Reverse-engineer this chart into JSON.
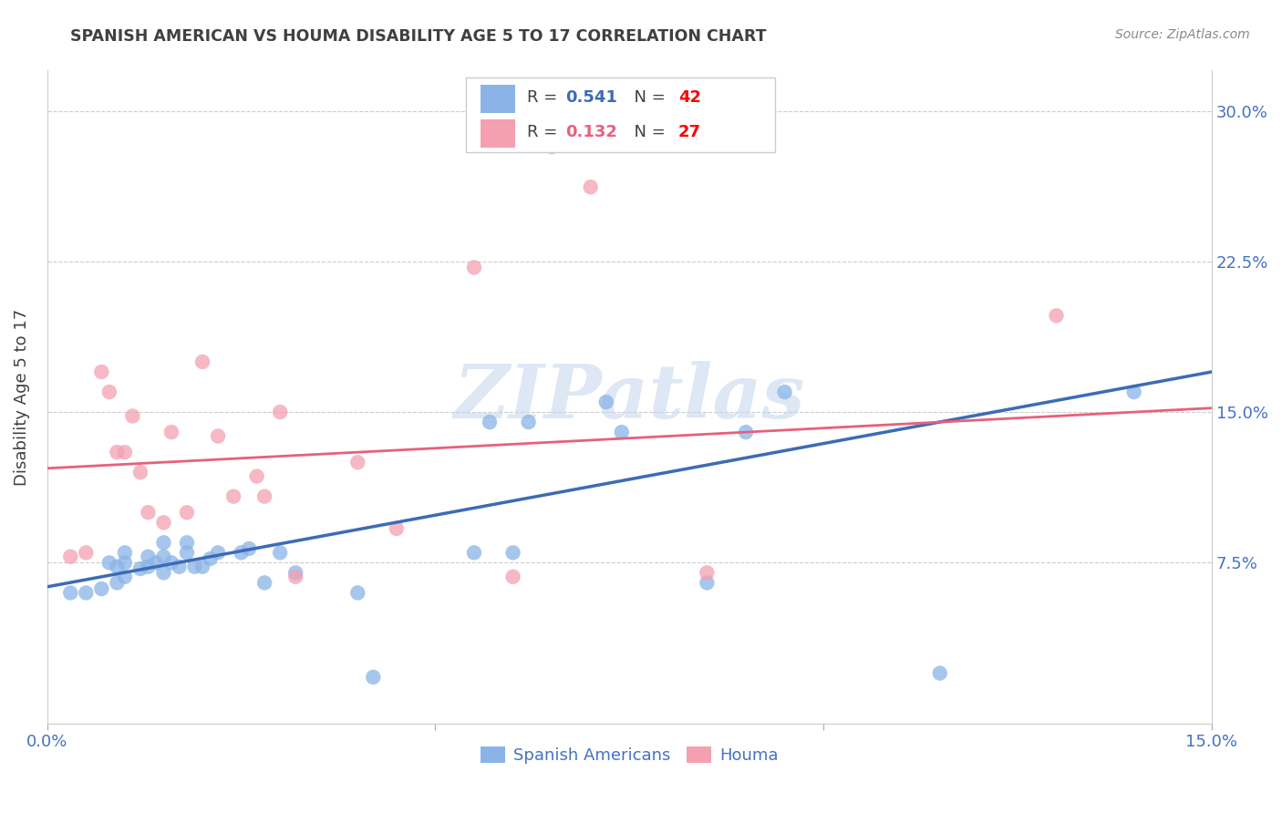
{
  "title": "SPANISH AMERICAN VS HOUMA DISABILITY AGE 5 TO 17 CORRELATION CHART",
  "source": "Source: ZipAtlas.com",
  "ylabel": "Disability Age 5 to 17",
  "xlim": [
    0.0,
    0.15
  ],
  "ylim": [
    -0.005,
    0.32
  ],
  "yticks": [
    0.075,
    0.15,
    0.225,
    0.3
  ],
  "xticks": [
    0.0,
    0.05,
    0.1,
    0.15
  ],
  "xtick_labels": [
    "0.0%",
    "",
    "",
    "15.0%"
  ],
  "ytick_labels": [
    "7.5%",
    "15.0%",
    "22.5%",
    "30.0%"
  ],
  "legend_r1": "R = ",
  "legend_rv1": "0.541",
  "legend_n1": "  N = ",
  "legend_nv1": "42",
  "legend_r2": "R = ",
  "legend_rv2": "0.132",
  "legend_n2": "  N = ",
  "legend_nv2": "27",
  "blue_color": "#8AB4E8",
  "pink_color": "#F4A0B0",
  "line_blue": "#3D6BB5",
  "line_pink": "#E8607A",
  "axis_color": "#4472C4",
  "title_color": "#404040",
  "watermark_text": "ZIPatlas",
  "watermark_color": "#C8D8ED",
  "blue_x": [
    0.003,
    0.005,
    0.007,
    0.008,
    0.009,
    0.009,
    0.01,
    0.01,
    0.01,
    0.012,
    0.013,
    0.013,
    0.014,
    0.015,
    0.015,
    0.015,
    0.016,
    0.017,
    0.018,
    0.018,
    0.019,
    0.02,
    0.021,
    0.022,
    0.025,
    0.026,
    0.028,
    0.03,
    0.032,
    0.04,
    0.042,
    0.055,
    0.057,
    0.06,
    0.062,
    0.072,
    0.074,
    0.085,
    0.09,
    0.095,
    0.115,
    0.14
  ],
  "blue_y": [
    0.06,
    0.06,
    0.062,
    0.075,
    0.065,
    0.073,
    0.068,
    0.075,
    0.08,
    0.072,
    0.073,
    0.078,
    0.075,
    0.07,
    0.078,
    0.085,
    0.075,
    0.073,
    0.08,
    0.085,
    0.073,
    0.073,
    0.077,
    0.08,
    0.08,
    0.082,
    0.065,
    0.08,
    0.07,
    0.06,
    0.018,
    0.08,
    0.145,
    0.08,
    0.145,
    0.155,
    0.14,
    0.065,
    0.14,
    0.16,
    0.02,
    0.16
  ],
  "pink_x": [
    0.003,
    0.005,
    0.007,
    0.008,
    0.009,
    0.01,
    0.011,
    0.012,
    0.013,
    0.015,
    0.016,
    0.018,
    0.02,
    0.022,
    0.024,
    0.027,
    0.028,
    0.03,
    0.032,
    0.04,
    0.045,
    0.055,
    0.06,
    0.065,
    0.07,
    0.085,
    0.13
  ],
  "pink_y": [
    0.078,
    0.08,
    0.17,
    0.16,
    0.13,
    0.13,
    0.148,
    0.12,
    0.1,
    0.095,
    0.14,
    0.1,
    0.175,
    0.138,
    0.108,
    0.118,
    0.108,
    0.15,
    0.068,
    0.125,
    0.092,
    0.222,
    0.068,
    0.282,
    0.262,
    0.07,
    0.198
  ],
  "blue_line_x": [
    0.0,
    0.15
  ],
  "blue_line_y": [
    0.063,
    0.17
  ],
  "pink_line_x": [
    0.0,
    0.15
  ],
  "pink_line_y": [
    0.122,
    0.152
  ]
}
